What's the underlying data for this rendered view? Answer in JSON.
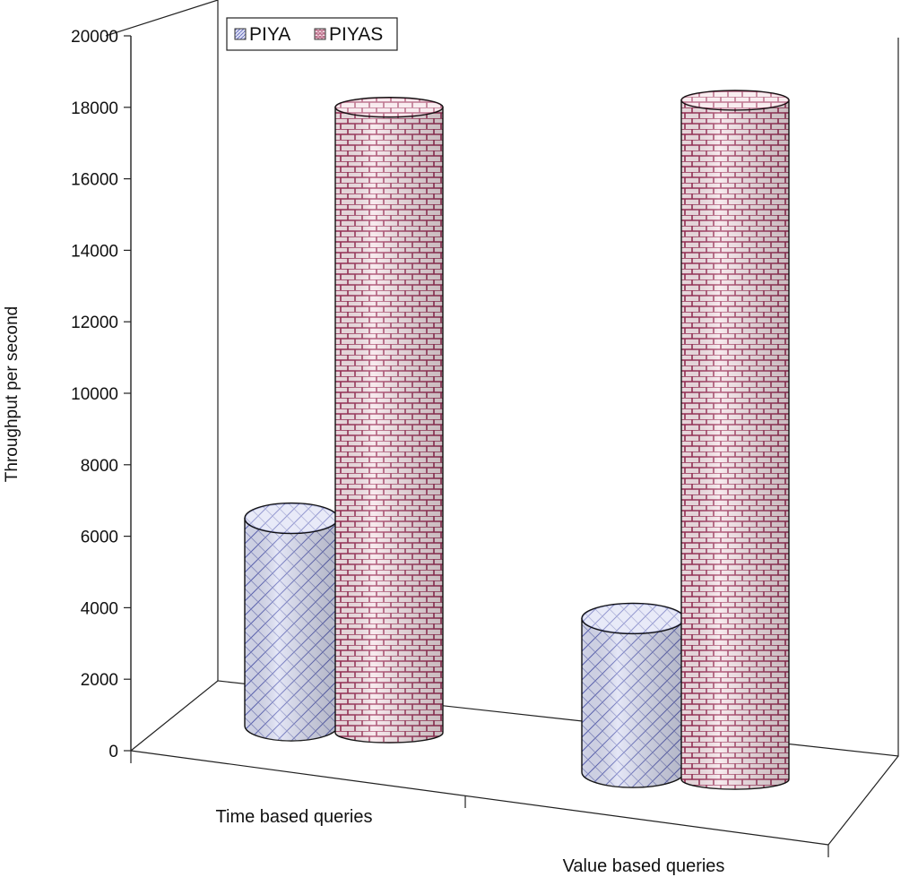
{
  "chart_data": {
    "type": "bar",
    "style": "3d-cylinder",
    "title": "",
    "xlabel": "",
    "ylabel": "Throughput per second",
    "ylim": [
      0,
      20000
    ],
    "yticks": [
      "0",
      "2000",
      "4000",
      "6000",
      "8000",
      "10000",
      "12000",
      "14000",
      "16000",
      "18000",
      "20000"
    ],
    "categories": [
      "Time based queries",
      "Value based queries"
    ],
    "series": [
      {
        "name": "PIYA",
        "values": [
          5800,
          4300
        ],
        "color": "#d6d9f2",
        "pattern": "diagonal-crosshatch"
      },
      {
        "name": "PIYAS",
        "values": [
          17500,
          19000
        ],
        "color": "#f4dde3",
        "pattern": "brick"
      }
    ],
    "legend": "top-left",
    "grid": false
  }
}
